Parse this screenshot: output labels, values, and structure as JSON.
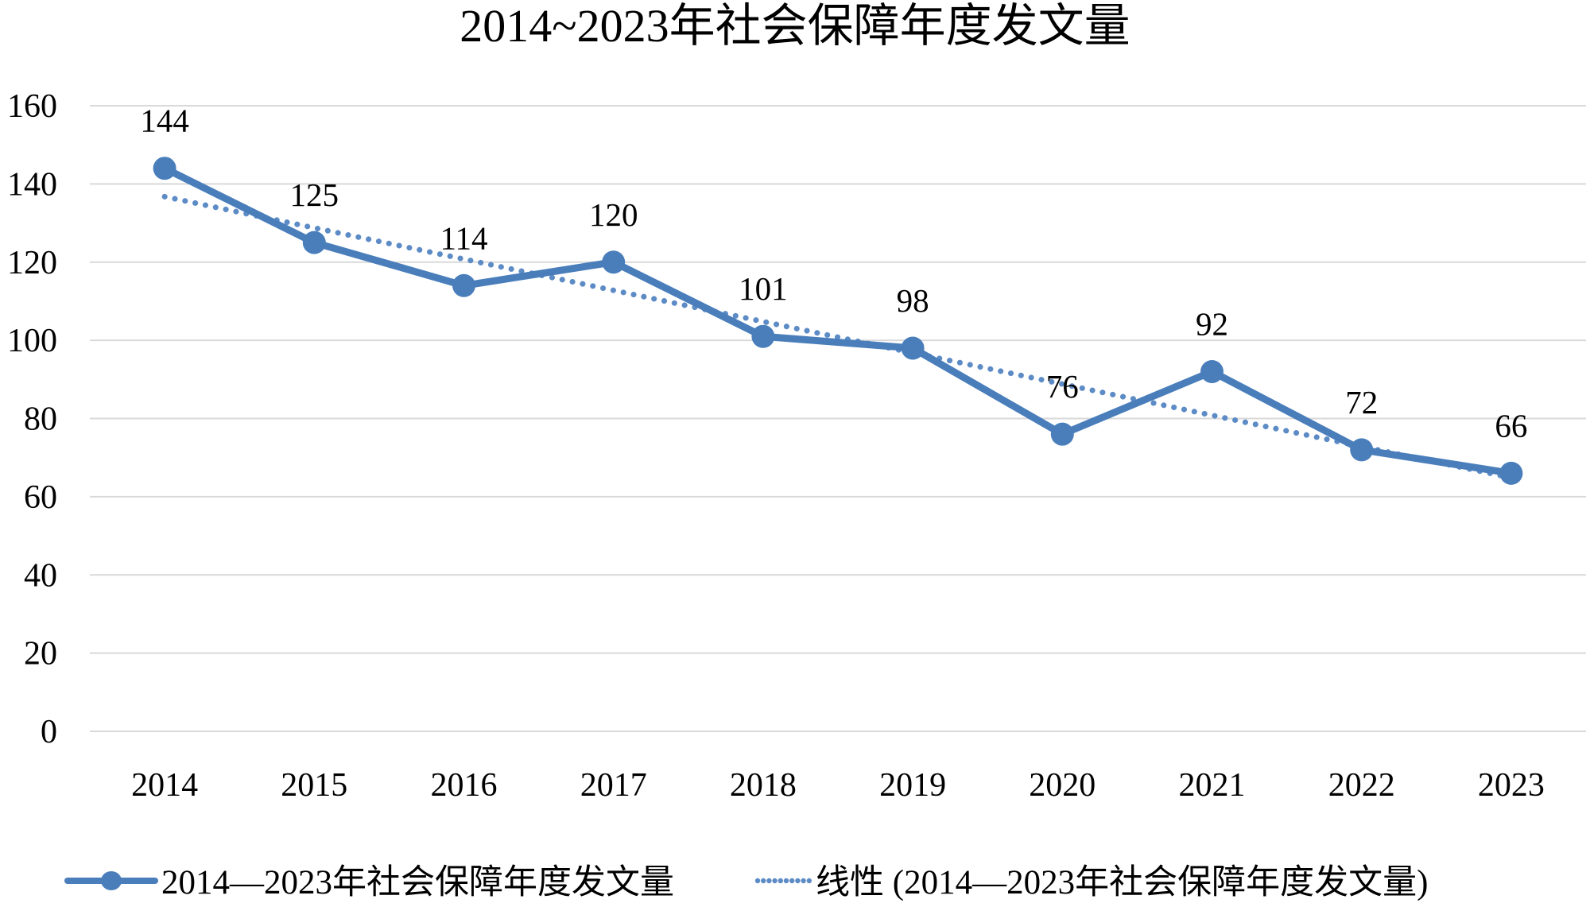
{
  "title": "2014~2023年社会保障年度发文量",
  "colors": {
    "series": "#4A7EBB",
    "trend": "#5C8BC6",
    "gridline": "#D9D9D9",
    "text": "#000000",
    "background": "#FFFFFF"
  },
  "chart_data": {
    "type": "line",
    "title": "2014~2023年社会保障年度发文量",
    "categories": [
      "2014",
      "2015",
      "2016",
      "2017",
      "2018",
      "2019",
      "2020",
      "2021",
      "2022",
      "2023"
    ],
    "series": [
      {
        "name": "2014—2023年社会保障年度发文量",
        "values": [
          144,
          125,
          114,
          120,
          101,
          98,
          76,
          92,
          72,
          66
        ],
        "color": "#4A7EBB",
        "marker": "circle",
        "data_labels": [
          144,
          125,
          114,
          120,
          101,
          98,
          76,
          92,
          72,
          66
        ]
      }
    ],
    "trendline": {
      "name": "线性 (2014—2023年社会保障年度发文量)",
      "type": "linear",
      "style": "dotted",
      "color": "#5C8BC6"
    },
    "xlabel": "",
    "ylabel": "",
    "ylim": [
      0,
      160
    ],
    "yticks": [
      0,
      20,
      40,
      60,
      80,
      100,
      120,
      140,
      160
    ],
    "grid": true,
    "legend_position": "bottom"
  },
  "legend": {
    "series_label": "2014—2023年社会保障年度发文量",
    "trend_label": "线性 (2014—2023年社会保障年度发文量)"
  }
}
